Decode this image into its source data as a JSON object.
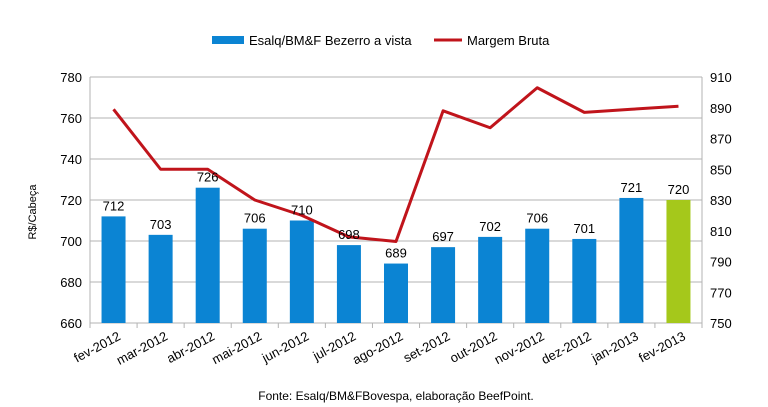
{
  "chart_data": {
    "type": "bar",
    "categories": [
      "fev-2012",
      "mar-2012",
      "abr-2012",
      "mai-2012",
      "jun-2012",
      "jul-2012",
      "ago-2012",
      "set-2012",
      "out-2012",
      "nov-2012",
      "dez-2012",
      "jan-2013",
      "fev-2013"
    ],
    "series": [
      {
        "name": "Esalq/BM&F Bezerro a vista",
        "type": "bar",
        "axis": "left",
        "color": "#0b84d3",
        "highlight_last_color": "#a5c81b",
        "values": [
          712,
          703,
          726,
          706,
          710,
          698,
          689,
          697,
          702,
          706,
          701,
          721,
          720
        ],
        "labels": [
          "712",
          "703",
          "726",
          "706",
          "710",
          "698",
          "689",
          "697",
          "702",
          "706",
          "701",
          "721",
          "720"
        ]
      },
      {
        "name": "Margem Bruta",
        "type": "line",
        "axis": "right",
        "color": "#c0141b",
        "values": [
          889,
          850,
          850,
          830,
          820,
          806,
          803,
          888,
          877,
          903,
          887,
          889,
          891
        ]
      }
    ],
    "ylabel": "R$/Cabeça",
    "ylim": [
      660,
      780
    ],
    "y_ticks": [
      "660",
      "680",
      "700",
      "720",
      "740",
      "760",
      "780"
    ],
    "y2lim": [
      750,
      910
    ],
    "y2_ticks": [
      "750",
      "770",
      "790",
      "810",
      "830",
      "850",
      "870",
      "890",
      "910"
    ],
    "grid": true,
    "legend_position": "top",
    "source": "Fonte: Esalq/BM&FBovespa, elaboração BeefPoint."
  }
}
